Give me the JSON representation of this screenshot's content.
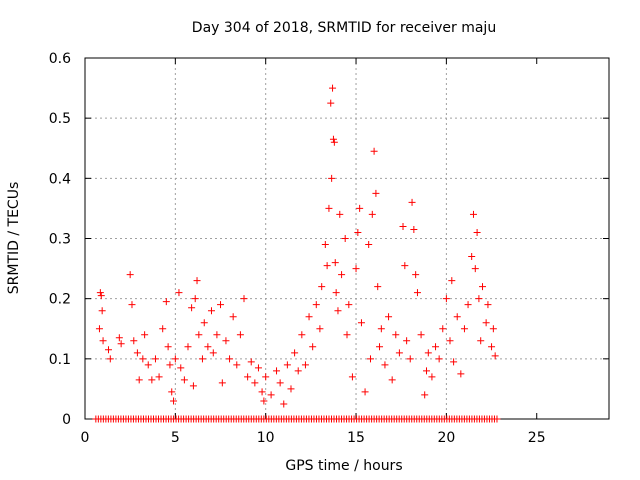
{
  "chart_data": {
    "type": "scatter",
    "title": "Day 304 of 2018, SRMTID for receiver maju",
    "xlabel": "GPS time / hours",
    "ylabel": "SRMTID / TECUs",
    "xlim": [
      0,
      29
    ],
    "ylim": [
      0,
      0.6
    ],
    "x_ticks": [
      "0",
      "5",
      "10",
      "15",
      "20",
      "25"
    ],
    "y_ticks": [
      "0",
      "0.1",
      "0.2",
      "0.3",
      "0.4",
      "0.5",
      "0.6"
    ],
    "grid": true,
    "marker": "+",
    "series": [
      {
        "name": "SRMTID",
        "color": "#ff0000",
        "points": [
          [
            0.8,
            0.15
          ],
          [
            0.85,
            0.21
          ],
          [
            0.9,
            0.205
          ],
          [
            0.95,
            0.18
          ],
          [
            1.0,
            0.13
          ],
          [
            1.3,
            0.115
          ],
          [
            1.4,
            0.1
          ],
          [
            1.9,
            0.135
          ],
          [
            2.0,
            0.125
          ],
          [
            2.5,
            0.24
          ],
          [
            2.6,
            0.19
          ],
          [
            2.7,
            0.13
          ],
          [
            2.9,
            0.11
          ],
          [
            3.0,
            0.065
          ],
          [
            3.2,
            0.1
          ],
          [
            3.3,
            0.14
          ],
          [
            3.5,
            0.09
          ],
          [
            3.7,
            0.065
          ],
          [
            3.9,
            0.1
          ],
          [
            4.1,
            0.07
          ],
          [
            4.3,
            0.15
          ],
          [
            4.5,
            0.195
          ],
          [
            4.6,
            0.12
          ],
          [
            4.7,
            0.09
          ],
          [
            4.8,
            0.045
          ],
          [
            4.9,
            0.03
          ],
          [
            5.0,
            0.1
          ],
          [
            5.2,
            0.21
          ],
          [
            5.3,
            0.085
          ],
          [
            5.5,
            0.065
          ],
          [
            5.7,
            0.12
          ],
          [
            5.9,
            0.185
          ],
          [
            6.0,
            0.055
          ],
          [
            6.1,
            0.2
          ],
          [
            6.2,
            0.23
          ],
          [
            6.3,
            0.14
          ],
          [
            6.5,
            0.1
          ],
          [
            6.6,
            0.16
          ],
          [
            6.8,
            0.12
          ],
          [
            7.0,
            0.18
          ],
          [
            7.1,
            0.11
          ],
          [
            7.3,
            0.14
          ],
          [
            7.5,
            0.19
          ],
          [
            7.6,
            0.06
          ],
          [
            7.8,
            0.13
          ],
          [
            8.0,
            0.1
          ],
          [
            8.2,
            0.17
          ],
          [
            8.4,
            0.09
          ],
          [
            8.6,
            0.14
          ],
          [
            8.8,
            0.2
          ],
          [
            9.0,
            0.07
          ],
          [
            9.2,
            0.095
          ],
          [
            9.4,
            0.06
          ],
          [
            9.6,
            0.085
          ],
          [
            9.8,
            0.045
          ],
          [
            9.9,
            0.03
          ],
          [
            10.0,
            0.07
          ],
          [
            10.3,
            0.04
          ],
          [
            10.6,
            0.08
          ],
          [
            10.8,
            0.06
          ],
          [
            11.0,
            0.025
          ],
          [
            11.2,
            0.09
          ],
          [
            11.4,
            0.05
          ],
          [
            11.6,
            0.11
          ],
          [
            11.8,
            0.08
          ],
          [
            12.0,
            0.14
          ],
          [
            12.2,
            0.09
          ],
          [
            12.4,
            0.17
          ],
          [
            12.6,
            0.12
          ],
          [
            12.8,
            0.19
          ],
          [
            13.0,
            0.15
          ],
          [
            13.1,
            0.22
          ],
          [
            13.3,
            0.29
          ],
          [
            13.4,
            0.255
          ],
          [
            13.5,
            0.35
          ],
          [
            13.6,
            0.525
          ],
          [
            13.65,
            0.4
          ],
          [
            13.7,
            0.55
          ],
          [
            13.75,
            0.465
          ],
          [
            13.8,
            0.46
          ],
          [
            13.85,
            0.26
          ],
          [
            13.9,
            0.21
          ],
          [
            14.0,
            0.18
          ],
          [
            14.1,
            0.34
          ],
          [
            14.2,
            0.24
          ],
          [
            14.4,
            0.3
          ],
          [
            14.5,
            0.14
          ],
          [
            14.6,
            0.19
          ],
          [
            14.8,
            0.07
          ],
          [
            15.0,
            0.25
          ],
          [
            15.1,
            0.31
          ],
          [
            15.2,
            0.35
          ],
          [
            15.3,
            0.16
          ],
          [
            15.5,
            0.045
          ],
          [
            15.7,
            0.29
          ],
          [
            15.8,
            0.1
          ],
          [
            15.9,
            0.34
          ],
          [
            16.0,
            0.445
          ],
          [
            16.1,
            0.375
          ],
          [
            16.2,
            0.22
          ],
          [
            16.3,
            0.12
          ],
          [
            16.4,
            0.15
          ],
          [
            16.6,
            0.09
          ],
          [
            16.8,
            0.17
          ],
          [
            17.0,
            0.065
          ],
          [
            17.2,
            0.14
          ],
          [
            17.4,
            0.11
          ],
          [
            17.6,
            0.32
          ],
          [
            17.7,
            0.255
          ],
          [
            17.8,
            0.13
          ],
          [
            18.0,
            0.1
          ],
          [
            18.1,
            0.36
          ],
          [
            18.2,
            0.315
          ],
          [
            18.3,
            0.24
          ],
          [
            18.4,
            0.21
          ],
          [
            18.6,
            0.14
          ],
          [
            18.8,
            0.04
          ],
          [
            18.9,
            0.08
          ],
          [
            19.0,
            0.11
          ],
          [
            19.2,
            0.07
          ],
          [
            19.4,
            0.12
          ],
          [
            19.6,
            0.1
          ],
          [
            19.8,
            0.15
          ],
          [
            20.0,
            0.2
          ],
          [
            20.2,
            0.13
          ],
          [
            20.3,
            0.23
          ],
          [
            20.4,
            0.095
          ],
          [
            20.6,
            0.17
          ],
          [
            20.8,
            0.075
          ],
          [
            21.0,
            0.15
          ],
          [
            21.2,
            0.19
          ],
          [
            21.4,
            0.27
          ],
          [
            21.5,
            0.34
          ],
          [
            21.6,
            0.25
          ],
          [
            21.7,
            0.31
          ],
          [
            21.8,
            0.2
          ],
          [
            21.9,
            0.13
          ],
          [
            22.0,
            0.22
          ],
          [
            22.2,
            0.16
          ],
          [
            22.3,
            0.19
          ],
          [
            22.5,
            0.12
          ],
          [
            22.6,
            0.15
          ],
          [
            22.7,
            0.105
          ]
        ]
      }
    ],
    "zero_points_x_range": [
      0.6,
      22.8
    ]
  }
}
